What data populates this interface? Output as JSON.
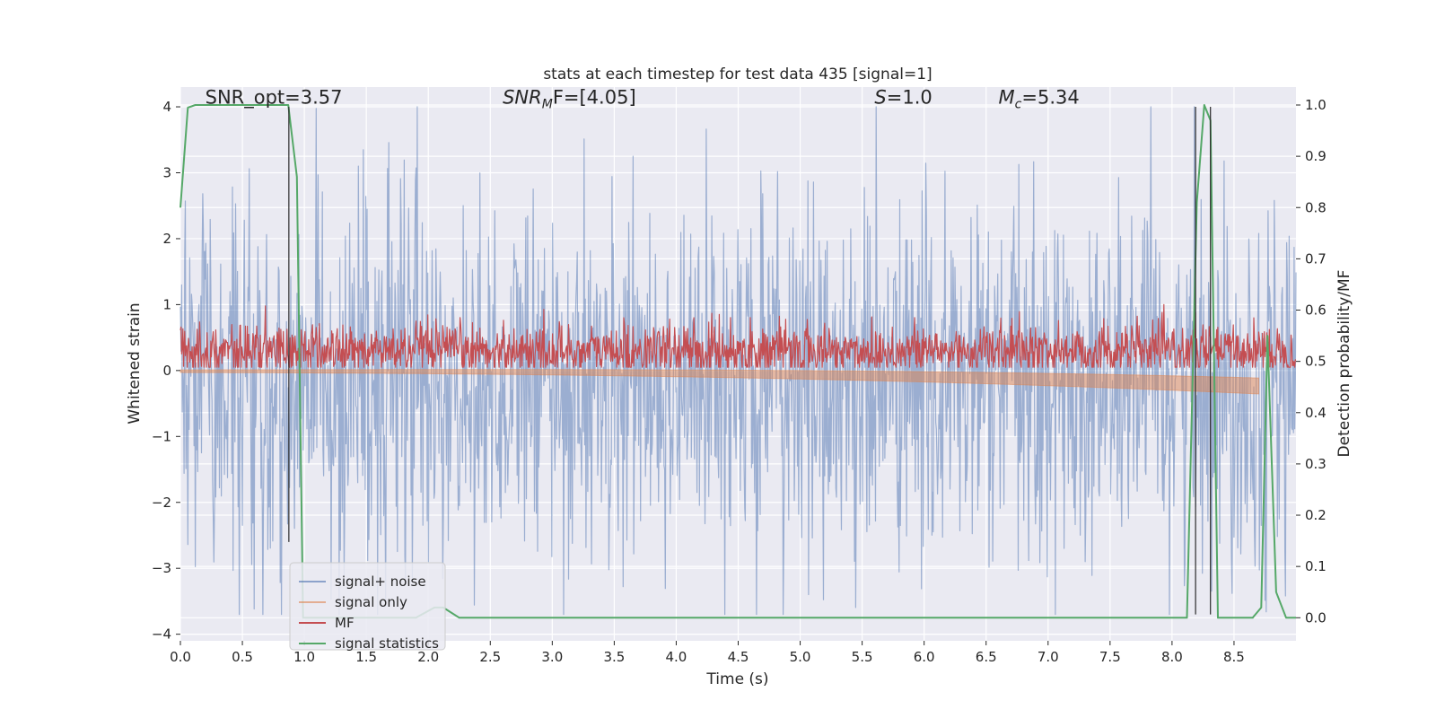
{
  "chart_data": {
    "type": "line",
    "title": "stats at each timestep for test data 435 [signal=1]",
    "xlabel": "Time (s)",
    "ylabel": "Whitened strain",
    "y2label": "Detection probability/MF",
    "xlim": [
      0.0,
      9.0
    ],
    "ylim": [
      -4.1,
      4.3
    ],
    "y2lim": [
      -0.045,
      1.035
    ],
    "xticks": [
      0.0,
      0.5,
      1.0,
      1.5,
      2.0,
      2.5,
      3.0,
      3.5,
      4.0,
      4.5,
      5.0,
      5.5,
      6.0,
      6.5,
      7.0,
      7.5,
      8.0,
      8.5
    ],
    "xtick_labels": [
      "0.0",
      "0.5",
      "1.0",
      "1.5",
      "2.0",
      "2.5",
      "3.0",
      "3.5",
      "4.0",
      "4.5",
      "5.0",
      "5.5",
      "6.0",
      "6.5",
      "7.0",
      "7.5",
      "8.0",
      "8.5"
    ],
    "yticks": [
      4,
      3,
      2,
      1,
      0,
      -1,
      -2,
      -3,
      -4
    ],
    "ytick_labels": [
      "4",
      "3",
      "2",
      "1",
      "0",
      "−1",
      "−2",
      "−3",
      "−4"
    ],
    "y2ticks": [
      1.0,
      0.9,
      0.8,
      0.7,
      0.6,
      0.5,
      0.4,
      0.3,
      0.2,
      0.1,
      0.0
    ],
    "y2tick_labels": [
      "1.0",
      "0.9",
      "0.8",
      "0.7",
      "0.6",
      "0.5",
      "0.4",
      "0.3",
      "0.2",
      "0.1",
      "0.0"
    ],
    "grid": true,
    "legend_position": "bottom-left",
    "annotations": [
      {
        "id": "snr-opt",
        "prefix": "SNR_opt=3.57",
        "italic": "",
        "sub": "",
        "suffix": "",
        "x": 0.2,
        "y": 4.05
      },
      {
        "id": "snr-mf",
        "prefix": "",
        "italic": "SNR",
        "sub": "M",
        "suffix": "F=[4.05]",
        "x": 2.6,
        "y": 4.05
      },
      {
        "id": "s-value",
        "prefix": "",
        "italic": "S",
        "sub": "",
        "suffix": "=1.0",
        "x": 5.6,
        "y": 4.05
      },
      {
        "id": "mc-value",
        "prefix": "",
        "italic": "M",
        "sub": "c",
        "suffix": "=5.34",
        "x": 6.6,
        "y": 4.05
      }
    ],
    "vertical_lines": [
      {
        "x": 0.875,
        "y_from": -2.6,
        "y_to": 4.0
      },
      {
        "x": 8.19,
        "y_from": -3.7,
        "y_to": 4.0
      },
      {
        "x": 8.31,
        "y_from": -3.7,
        "y_to": 4.0
      }
    ],
    "series": [
      {
        "name": "signal+ noise",
        "color": "#4c72b0",
        "opacity": 0.5,
        "axis": "left",
        "kind": "noise",
        "n_points": 1800,
        "center": -0.2,
        "amplitude": 1.35,
        "envelope_top": 4.0,
        "envelope_bottom": -3.7
      },
      {
        "name": "signal only",
        "color": "#dd8452",
        "opacity": 0.5,
        "axis": "left",
        "kind": "chirp",
        "x_end": 8.7,
        "min_at_end": -0.32
      },
      {
        "name": "MF",
        "color": "#c44e52",
        "opacity": 1.0,
        "axis": "left",
        "kind": "noise",
        "n_points": 1800,
        "center": 0.3,
        "amplitude": 0.2,
        "envelope_top": 1.0,
        "envelope_bottom": 0.05
      },
      {
        "name": "signal statistics",
        "color": "#55a868",
        "opacity": 1.0,
        "axis": "right",
        "kind": "line",
        "x": [
          0.0,
          0.06,
          0.12,
          0.2,
          0.3,
          0.4,
          0.5,
          0.6,
          0.7,
          0.8,
          0.87,
          0.94,
          0.99,
          1.05,
          1.5,
          1.9,
          2.05,
          2.12,
          2.25,
          3.0,
          4.0,
          5.0,
          6.0,
          7.0,
          8.0,
          8.12,
          8.2,
          8.26,
          8.31,
          8.37,
          8.5,
          8.65,
          8.72,
          8.77,
          8.84,
          8.92,
          9.0
        ],
        "y": [
          0.8,
          0.995,
          1.0,
          1.0,
          1.0,
          1.0,
          1.0,
          1.0,
          1.0,
          1.0,
          1.0,
          0.86,
          0.0,
          0.0,
          0.0,
          0.0,
          0.02,
          0.02,
          0.0,
          0.0,
          0.0,
          0.0,
          0.0,
          0.0,
          0.0,
          0.0,
          0.81,
          1.0,
          0.97,
          0.0,
          0.0,
          0.0,
          0.02,
          0.55,
          0.05,
          0.0,
          0.0
        ]
      }
    ]
  }
}
